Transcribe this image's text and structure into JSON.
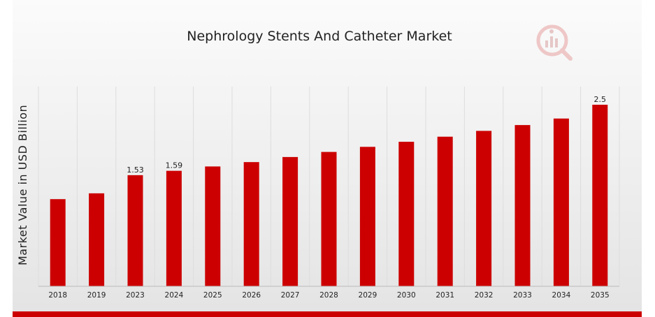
{
  "chart_data": {
    "type": "bar",
    "title": "Nephrology Stents And Catheter Market",
    "xlabel": "",
    "ylabel": "Market Value in USD Billion",
    "categories": [
      "2018",
      "2019",
      "2023",
      "2024",
      "2025",
      "2026",
      "2027",
      "2028",
      "2029",
      "2030",
      "2031",
      "2032",
      "2033",
      "2034",
      "2035"
    ],
    "values": [
      1.2,
      1.28,
      1.53,
      1.59,
      1.65,
      1.71,
      1.78,
      1.85,
      1.92,
      1.99,
      2.06,
      2.14,
      2.22,
      2.31,
      2.5
    ],
    "data_labels": [
      "",
      "",
      "1.53",
      "1.59",
      "",
      "",
      "",
      "",
      "",
      "",
      "",
      "",
      "",
      "",
      "2.5"
    ],
    "ylim": [
      0,
      2.6
    ],
    "grid": true,
    "legend": "none",
    "bar_color": "#cc0000"
  },
  "colors": {
    "bar": "#cc0000",
    "footer_bar": "#cc0000",
    "grid": "#dddddd",
    "background_top": "#fafafa",
    "background_bottom": "#e6e6e6"
  },
  "logo": {
    "icon": "market-research-logo-icon"
  }
}
